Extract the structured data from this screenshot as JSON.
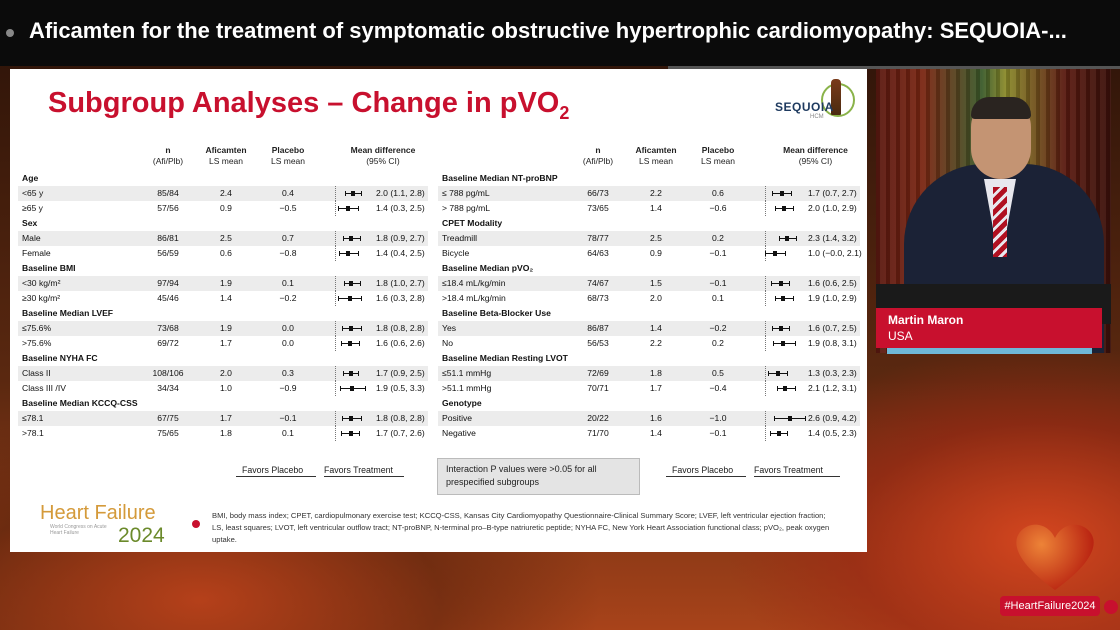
{
  "video": {
    "title": "Aficamten for the treatment of symptomatic obstructive hypertrophic cardiomyopathy: SEQUOIA-..."
  },
  "slide": {
    "title": "Subgroup Analyses – Change in pVO",
    "title_sub": "2",
    "logo_word": "SEQUOIA",
    "logo_sub": "HCM",
    "headers": {
      "n": "n",
      "n_sub": "(Afi/Plb)",
      "afi": "Aficamten",
      "afi_sub": "LS mean",
      "plb": "Placebo",
      "plb_sub": "LS mean",
      "md": "Mean difference",
      "md_sub": "(95% CI)"
    },
    "left_groups": [
      {
        "title": "Age",
        "rows": [
          {
            "label": "<65 y",
            "n": "85/84",
            "afi": "2.4",
            "plb": "0.4",
            "md": "2.0 (1.1, 2.8)",
            "est": 2.0,
            "lo": 1.1,
            "hi": 2.8
          },
          {
            "label": "≥65 y",
            "n": "57/56",
            "afi": "0.9",
            "plb": "−0.5",
            "md": "1.4 (0.3, 2.5)",
            "est": 1.4,
            "lo": 0.3,
            "hi": 2.5
          }
        ]
      },
      {
        "title": "Sex",
        "rows": [
          {
            "label": "Male",
            "n": "86/81",
            "afi": "2.5",
            "plb": "0.7",
            "md": "1.8 (0.9, 2.7)",
            "est": 1.8,
            "lo": 0.9,
            "hi": 2.7
          },
          {
            "label": "Female",
            "n": "56/59",
            "afi": "0.6",
            "plb": "−0.8",
            "md": "1.4 (0.4, 2.5)",
            "est": 1.4,
            "lo": 0.4,
            "hi": 2.5
          }
        ]
      },
      {
        "title": "Baseline BMI",
        "rows": [
          {
            "label": "<30 kg/m²",
            "n": "97/94",
            "afi": "1.9",
            "plb": "0.1",
            "md": "1.8 (1.0, 2.7)",
            "est": 1.8,
            "lo": 1.0,
            "hi": 2.7
          },
          {
            "label": "≥30 kg/m²",
            "n": "45/46",
            "afi": "1.4",
            "plb": "−0.2",
            "md": "1.6 (0.3, 2.8)",
            "est": 1.6,
            "lo": 0.3,
            "hi": 2.8
          }
        ]
      },
      {
        "title": "Baseline Median LVEF",
        "rows": [
          {
            "label": "≤75.6%",
            "n": "73/68",
            "afi": "1.9",
            "plb": "0.0",
            "md": "1.8 (0.8, 2.8)",
            "est": 1.8,
            "lo": 0.8,
            "hi": 2.8
          },
          {
            "label": ">75.6%",
            "n": "69/72",
            "afi": "1.7",
            "plb": "0.0",
            "md": "1.6 (0.6, 2.6)",
            "est": 1.6,
            "lo": 0.6,
            "hi": 2.6
          }
        ]
      },
      {
        "title": "Baseline NYHA FC",
        "rows": [
          {
            "label": "Class II",
            "n": "108/106",
            "afi": "2.0",
            "plb": "0.3",
            "md": "1.7 (0.9, 2.5)",
            "est": 1.7,
            "lo": 0.9,
            "hi": 2.5
          },
          {
            "label": "Class III /IV",
            "n": "34/34",
            "afi": "1.0",
            "plb": "−0.9",
            "md": "1.9 (0.5, 3.3)",
            "est": 1.9,
            "lo": 0.5,
            "hi": 3.3
          }
        ]
      },
      {
        "title": "Baseline Median KCCQ-CSS",
        "rows": [
          {
            "label": "≤78.1",
            "n": "67/75",
            "afi": "1.7",
            "plb": "−0.1",
            "md": "1.8 (0.8, 2.8)",
            "est": 1.8,
            "lo": 0.8,
            "hi": 2.8
          },
          {
            "label": ">78.1",
            "n": "75/65",
            "afi": "1.8",
            "plb": "0.1",
            "md": "1.7 (0.7, 2.6)",
            "est": 1.7,
            "lo": 0.7,
            "hi": 2.6
          }
        ]
      }
    ],
    "right_groups": [
      {
        "title": "Baseline Median NT-proBNP",
        "rows": [
          {
            "label": "≤ 788 pg/mL",
            "n": "66/73",
            "afi": "2.2",
            "plb": "0.6",
            "md": "1.7 (0.7, 2.7)",
            "est": 1.7,
            "lo": 0.7,
            "hi": 2.7
          },
          {
            "label": "> 788 pg/mL",
            "n": "73/65",
            "afi": "1.4",
            "plb": "−0.6",
            "md": "2.0 (1.0, 2.9)",
            "est": 2.0,
            "lo": 1.0,
            "hi": 2.9
          }
        ]
      },
      {
        "title": "CPET Modality",
        "rows": [
          {
            "label": "Treadmill",
            "n": "78/77",
            "afi": "2.5",
            "plb": "0.2",
            "md": "2.3 (1.4, 3.2)",
            "est": 2.3,
            "lo": 1.4,
            "hi": 3.2
          },
          {
            "label": "Bicycle",
            "n": "64/63",
            "afi": "0.9",
            "plb": "−0.1",
            "md": "1.0 (−0.0, 2.1)",
            "est": 1.0,
            "lo": 0.0,
            "hi": 2.1
          }
        ]
      },
      {
        "title": "Baseline Median pVO₂",
        "rows": [
          {
            "label": "≤18.4 mL/kg/min",
            "n": "74/67",
            "afi": "1.5",
            "plb": "−0.1",
            "md": "1.6 (0.6, 2.5)",
            "est": 1.6,
            "lo": 0.6,
            "hi": 2.5
          },
          {
            "label": ">18.4 mL/kg/min",
            "n": "68/73",
            "afi": "2.0",
            "plb": "0.1",
            "md": "1.9 (1.0, 2.9)",
            "est": 1.9,
            "lo": 1.0,
            "hi": 2.9
          }
        ]
      },
      {
        "title": "Baseline Beta-Blocker Use",
        "rows": [
          {
            "label": "Yes",
            "n": "86/87",
            "afi": "1.4",
            "plb": "−0.2",
            "md": "1.6 (0.7, 2.5)",
            "est": 1.6,
            "lo": 0.7,
            "hi": 2.5
          },
          {
            "label": "No",
            "n": "56/53",
            "afi": "2.2",
            "plb": "0.2",
            "md": "1.9 (0.8, 3.1)",
            "est": 1.9,
            "lo": 0.8,
            "hi": 3.1
          }
        ]
      },
      {
        "title": "Baseline Median Resting LVOT",
        "rows": [
          {
            "label": "≤51.1 mmHg",
            "n": "72/69",
            "afi": "1.8",
            "plb": "0.5",
            "md": "1.3 (0.3, 2.3)",
            "est": 1.3,
            "lo": 0.3,
            "hi": 2.3
          },
          {
            "label": ">51.1 mmHg",
            "n": "70/71",
            "afi": "1.7",
            "plb": "−0.4",
            "md": "2.1 (1.2, 3.1)",
            "est": 2.1,
            "lo": 1.2,
            "hi": 3.1
          }
        ]
      },
      {
        "title": "Genotype",
        "rows": [
          {
            "label": "Positive",
            "n": "20/22",
            "afi": "1.6",
            "plb": "−1.0",
            "md": "2.6 (0.9, 4.2)",
            "est": 2.6,
            "lo": 0.9,
            "hi": 4.2
          },
          {
            "label": "Negative",
            "n": "71/70",
            "afi": "1.4",
            "plb": "−0.1",
            "md": "1.4 (0.5, 2.3)",
            "est": 1.4,
            "lo": 0.5,
            "hi": 2.3
          }
        ]
      }
    ],
    "favors_placebo": "Favors Placebo",
    "favors_treatment": "Favors Treatment",
    "interaction_note": "Interaction P values were >0.05 for all prespecified subgroups",
    "hf_logo_a": "Heart Failure",
    "hf_logo_b": "2024",
    "hf_logo_c": "World Congress on Acute Heart Failure",
    "footnote": "BMI, body mass index; CPET, cardiopulmonary exercise test; KCCQ-CSS, Kansas City Cardiomyopathy Questionnaire-Clinical Summary Score; LVEF, left ventricular ejection fraction; LS, least squares; LVOT, left ventricular outflow tract; NT-proBNP, N-terminal pro–B-type natriuretic peptide; NYHA FC, New York Heart Association functional class; pVO₂, peak oxygen uptake."
  },
  "speaker": {
    "name": "Martin Maron",
    "country": "USA"
  },
  "hashtag": "#HeartFailure2024",
  "colors": {
    "title_red": "#c8102e",
    "banner_red": "#c8102e",
    "shade": "#ececec"
  }
}
